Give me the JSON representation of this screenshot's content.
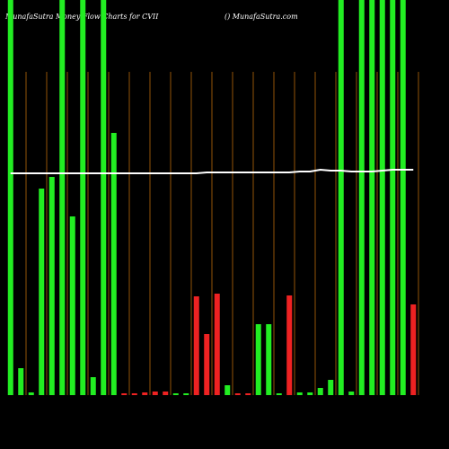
{
  "chart_data": {
    "type": "bar",
    "title": "MunafaSutra  Money Flow  Charts for CVII",
    "subtitle": "() MunafaSutra.com",
    "categories": [
      null,
      null,
      null,
      null,
      null,
      null,
      null,
      null,
      null,
      null,
      null,
      null,
      null,
      null,
      null,
      null,
      null,
      null,
      null,
      null,
      null,
      null,
      null,
      null,
      null,
      null,
      null,
      null,
      null,
      null,
      null,
      null,
      null,
      null,
      null,
      null,
      null,
      null,
      null,
      null
    ],
    "series": [
      {
        "name": null,
        "type": "bar",
        "values": [
          440,
          30,
          3,
          230,
          243,
          440,
          199,
          440,
          20,
          440,
          292,
          2,
          2,
          3,
          4,
          4,
          2,
          2,
          110,
          68,
          113,
          11,
          2,
          2,
          79,
          79,
          2,
          111,
          3,
          3,
          8,
          17,
          440,
          4,
          440,
          440,
          440,
          440,
          440,
          101
        ],
        "colors": [
          "#22ee22",
          "#22ee22",
          "#22ee22",
          "#22ee22",
          "#22ee22",
          "#22ee22",
          "#22ee22",
          "#22ee22",
          "#22ee22",
          "#22ee22",
          "#22ee22",
          "#ee2222",
          "#ee2222",
          "#ee2222",
          "#ee2222",
          "#ee2222",
          "#22ee22",
          "#22ee22",
          "#ee2222",
          "#ee2222",
          "#ee2222",
          "#22ee22",
          "#ee2222",
          "#ee2222",
          "#22ee22",
          "#22ee22",
          "#22ee22",
          "#ee2222",
          "#22ee22",
          "#22ee22",
          "#22ee22",
          "#22ee22",
          "#22ee22",
          "#22ee22",
          "#22ee22",
          "#22ee22",
          "#22ee22",
          "#22ee22",
          "#22ee22",
          "#ee2222"
        ]
      },
      {
        "name": null,
        "type": "line",
        "color": "#ffffff",
        "values": [
          247,
          247,
          247,
          247,
          247,
          247,
          247,
          247,
          247,
          247,
          247,
          247,
          247,
          247,
          247,
          247,
          247,
          247,
          247,
          248,
          248,
          248,
          248,
          248,
          248,
          248,
          248,
          248,
          249,
          249,
          251,
          250,
          250,
          249,
          249,
          249,
          250,
          251,
          251,
          251
        ]
      }
    ],
    "ylim": [
      0,
      440
    ],
    "grid": true,
    "grid_color": "#b8690a"
  }
}
